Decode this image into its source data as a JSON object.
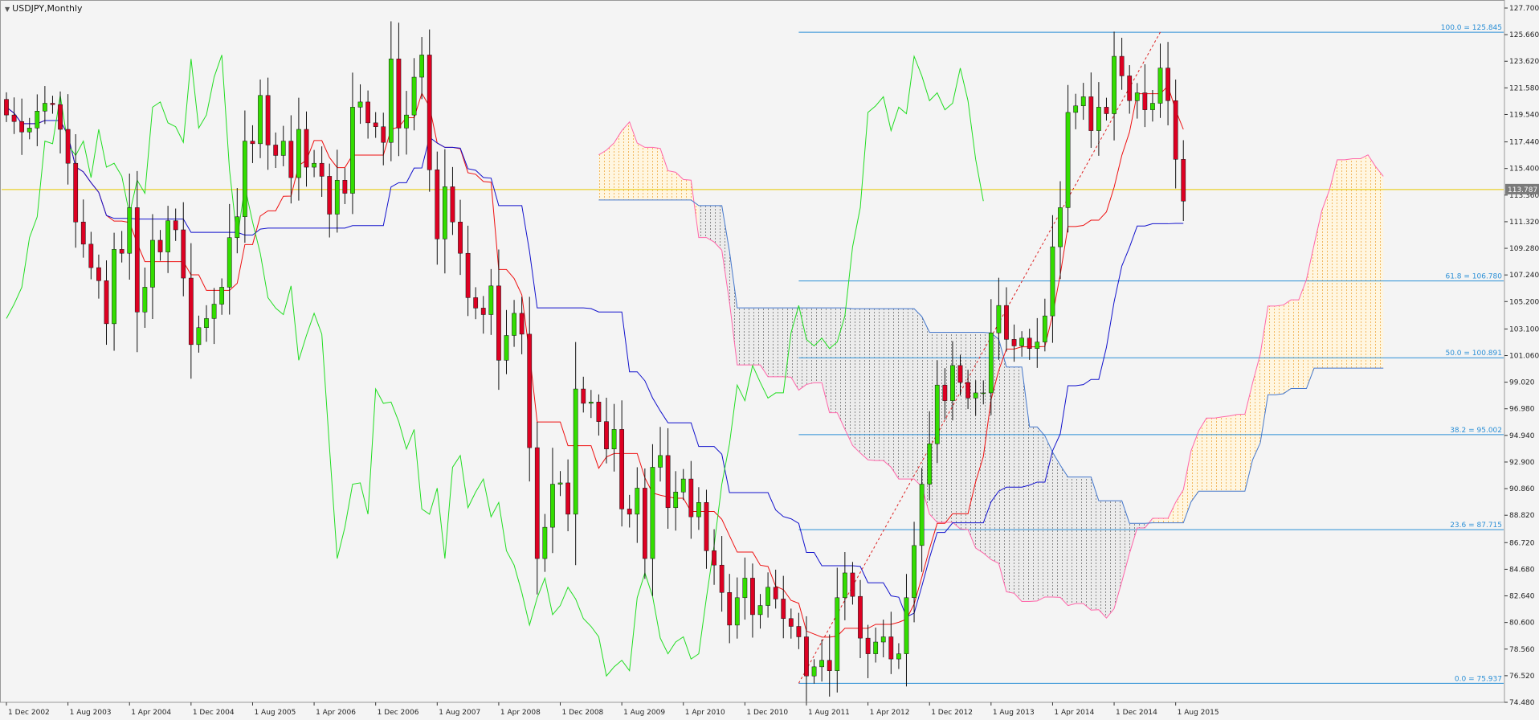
{
  "window": {
    "title": "USDJPY,Monthly"
  },
  "colors": {
    "background": "#f4f4f4",
    "bull_candle": "#33dd00",
    "bear_candle": "#dd0022",
    "tenkan": "#ee1111",
    "kijun": "#1111cc",
    "chikou": "#22dd22",
    "span_a": "#ff66aa",
    "span_b": "#4477cc",
    "fib": "#2b8fd6",
    "current_price_line": "#e8c800",
    "price_tag": "#7a7a7a"
  },
  "chart_data": {
    "type": "candlestick",
    "symbol": "USDJPY",
    "timeframe": "Monthly",
    "ylim": [
      74.48,
      127.7
    ],
    "y_ticks": [
      "127.700",
      "125.660",
      "123.620",
      "121.580",
      "119.540",
      "117.440",
      "115.400",
      "113.360",
      "111.320",
      "109.280",
      "107.240",
      "105.200",
      "103.100",
      "101.060",
      "99.020",
      "96.980",
      "94.940",
      "92.900",
      "90.860",
      "88.820",
      "86.720",
      "84.680",
      "82.640",
      "80.600",
      "78.560",
      "76.520",
      "74.480"
    ],
    "x_labels": [
      {
        "label": "1 Dec 2002",
        "month_index": 0
      },
      {
        "label": "1 Aug 2003",
        "month_index": 8
      },
      {
        "label": "1 Apr 2004",
        "month_index": 16
      },
      {
        "label": "1 Dec 2004",
        "month_index": 24
      },
      {
        "label": "1 Aug 2005",
        "month_index": 32
      },
      {
        "label": "1 Apr 2006",
        "month_index": 40
      },
      {
        "label": "1 Dec 2006",
        "month_index": 48
      },
      {
        "label": "1 Aug 2007",
        "month_index": 56
      },
      {
        "label": "1 Apr 2008",
        "month_index": 64
      },
      {
        "label": "1 Dec 2008",
        "month_index": 72
      },
      {
        "label": "1 Aug 2009",
        "month_index": 80
      },
      {
        "label": "1 Apr 2010",
        "month_index": 88
      },
      {
        "label": "1 Dec 2010",
        "month_index": 96
      },
      {
        "label": "1 Aug 2011",
        "month_index": 104
      },
      {
        "label": "1 Apr 2012",
        "month_index": 112
      },
      {
        "label": "1 Dec 2012",
        "month_index": 120
      },
      {
        "label": "1 Aug 2013",
        "month_index": 128
      },
      {
        "label": "1 Apr 2014",
        "month_index": 136
      },
      {
        "label": "1 Dec 2014",
        "month_index": 144
      },
      {
        "label": "1 Aug 2015",
        "month_index": 152
      }
    ],
    "x_range_months": [
      0,
      189
    ],
    "current_price": {
      "value": 113.787,
      "label": "113.787"
    },
    "closes": [
      119.5,
      119.0,
      118.2,
      118.5,
      119.8,
      120.4,
      120.3,
      118.4,
      115.8,
      111.3,
      109.6,
      107.8,
      106.8,
      103.5,
      109.2,
      108.9,
      112.4,
      104.4,
      106.3,
      109.9,
      109.0,
      111.4,
      110.7,
      107.0,
      101.9,
      103.2,
      103.9,
      105.0,
      106.3,
      110.1,
      111.7,
      117.5,
      117.3,
      121.0,
      117.2,
      116.4,
      117.5,
      114.7,
      118.4,
      115.5,
      115.8,
      114.8,
      111.9,
      114.5,
      113.5,
      120.1,
      120.5,
      118.9,
      118.6,
      117.4,
      123.8,
      118.5,
      119.5,
      122.4,
      124.1,
      115.3,
      110.0,
      114.0,
      111.3,
      108.9,
      105.5,
      104.7,
      104.2,
      106.4,
      100.7,
      102.6,
      104.3,
      102.7,
      94.0,
      85.5,
      87.9,
      91.2,
      91.3,
      88.9,
      98.5,
      97.4,
      97.5,
      96.0,
      93.9,
      95.4,
      89.3,
      88.9,
      90.9,
      85.5,
      92.5,
      93.4,
      89.4,
      90.6,
      91.6,
      88.7,
      89.8,
      86.1,
      85.0,
      82.9,
      80.4,
      82.5,
      84.0,
      81.2,
      81.9,
      83.3,
      82.4,
      80.9,
      80.3,
      79.5,
      76.5,
      77.2,
      77.7,
      76.9,
      82.5,
      84.4,
      82.6,
      79.4,
      78.2,
      79.1,
      79.5,
      77.8,
      78.2,
      82.5,
      86.5,
      91.2,
      94.3,
      98.8,
      97.6,
      100.3,
      99.0,
      97.8,
      98.2,
      98.2,
      102.8,
      104.9,
      102.3,
      101.8,
      102.4,
      101.6,
      102.1,
      104.1,
      109.4,
      112.4,
      119.7,
      120.2,
      120.9,
      118.3,
      120.1,
      119.6,
      124.0,
      122.5,
      120.6,
      121.2,
      119.9,
      120.4,
      123.1,
      120.6,
      116.1,
      112.9
    ],
    "fibonacci": {
      "levels": [
        {
          "ratio_label": "100.0 = 125.845",
          "price": 125.845
        },
        {
          "ratio_label": "61.8 = 106.780",
          "price": 106.78
        },
        {
          "ratio_label": "50.0 = 100.891",
          "price": 100.891
        },
        {
          "ratio_label": "38.2 = 95.002",
          "price": 95.002
        },
        {
          "ratio_label": "23.6 = 87.715",
          "price": 87.715
        },
        {
          "ratio_label": "0.0 = 75.937",
          "price": 75.937
        }
      ],
      "start_month_index": 103,
      "end_month_index": 189
    },
    "trendline": {
      "from": {
        "month_index": 103,
        "price": 75.94
      },
      "to": {
        "month_index": 150,
        "price": 125.85
      }
    },
    "ichimoku": {
      "tenkan": true,
      "kijun": true,
      "chikou": true,
      "kumo": true,
      "kumo_displacement": 26
    },
    "grid": false,
    "legend": "none"
  }
}
